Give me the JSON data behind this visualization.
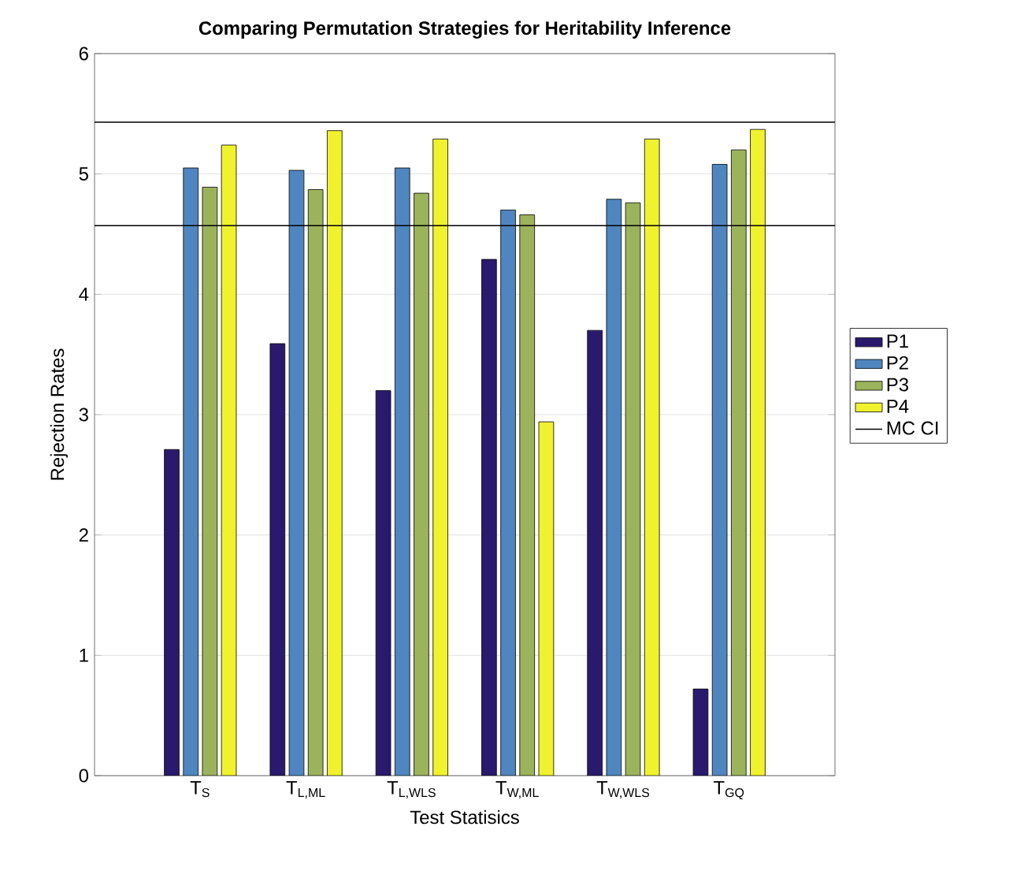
{
  "chart_data": {
    "type": "bar",
    "title": "Comparing Permutation Strategies for Heritability Inference",
    "xlabel": "Test Statisics",
    "ylabel": "Rejection Rates",
    "categories": [
      "T$_{S}$",
      "T$_{L,ML}$",
      "T$_{L,WLS}$",
      "T$_{W,ML}$",
      "T$_{W,WLS}$",
      "T$_{GQ}$"
    ],
    "series": [
      {
        "name": "P1",
        "color": "#2a1a6e",
        "values": [
          2.71,
          3.59,
          3.2,
          4.29,
          3.7,
          0.72
        ]
      },
      {
        "name": "P2",
        "color": "#4f86c0",
        "values": [
          5.05,
          5.03,
          5.05,
          4.7,
          4.79,
          5.08
        ]
      },
      {
        "name": "P3",
        "color": "#9bb35a",
        "values": [
          4.89,
          4.87,
          4.84,
          4.66,
          4.76,
          5.2
        ]
      },
      {
        "name": "P4",
        "color": "#f0f22e",
        "values": [
          5.24,
          5.36,
          5.29,
          2.94,
          5.29,
          5.37
        ]
      }
    ],
    "ref_lines": [
      {
        "axis": "y",
        "value": 5.43,
        "label": "MC CI",
        "color": "#000000"
      },
      {
        "axis": "y",
        "value": 4.57,
        "color": "#000000"
      }
    ],
    "ylim": [
      0,
      6
    ],
    "yticks": [
      0,
      1,
      2,
      3,
      4,
      5,
      6
    ],
    "grid": "y",
    "legend": "right"
  }
}
